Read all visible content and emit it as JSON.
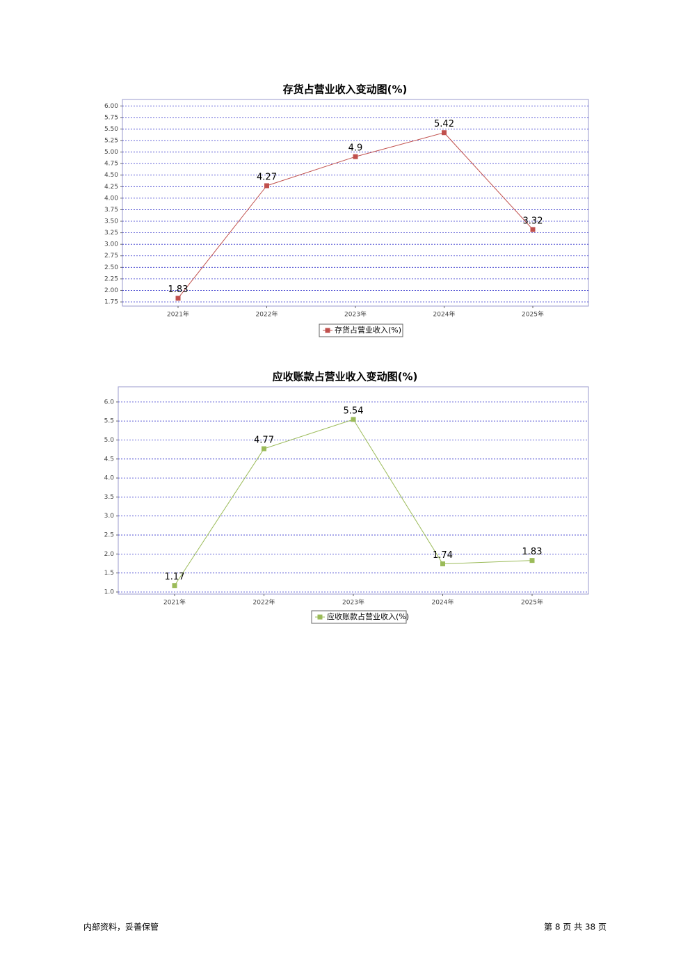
{
  "chart_data": [
    {
      "type": "line",
      "title": "存货占营业收入变动图(%)",
      "categories": [
        "2021年",
        "2022年",
        "2023年",
        "2024年",
        "2025年"
      ],
      "series": [
        {
          "name": "存货占营业收入(%)",
          "color": "#c0504d",
          "values": [
            1.83,
            4.27,
            4.9,
            5.42,
            3.32
          ]
        }
      ],
      "ylim": [
        1.66,
        6.14
      ],
      "yticks": [
        1.75,
        {
          "value": 2,
          "label": "2.00"
        },
        2.25,
        {
          "value": 2.5,
          "label": "2.50"
        },
        2.75,
        {
          "value": 3,
          "label": "3.00"
        },
        3.25,
        {
          "value": 3.5,
          "label": "3.50"
        },
        3.75,
        {
          "value": 4,
          "label": "4.00"
        },
        4.25,
        {
          "value": 4.5,
          "label": "4.50"
        },
        4.75,
        {
          "value": 5,
          "label": "5.00"
        },
        5.25,
        {
          "value": 5.5,
          "label": "5.50"
        },
        5.75,
        {
          "value": 6,
          "label": "6.00"
        }
      ],
      "grid": true,
      "legend": "bottom"
    },
    {
      "type": "line",
      "title": "应收账款占营业收入变动图(%)",
      "categories": [
        "2021年",
        "2022年",
        "2023年",
        "2024年",
        "2025年"
      ],
      "series": [
        {
          "name": "应收账款占营业收入(%)",
          "color": "#9bbb59",
          "values": [
            1.17,
            4.77,
            5.54,
            1.74,
            1.83
          ]
        }
      ],
      "ylim": [
        0.945,
        6.4
      ],
      "yticks": [
        {
          "value": 1,
          "label": "1.0"
        },
        1.5,
        {
          "value": 2,
          "label": "2.0"
        },
        2.5,
        {
          "value": 3,
          "label": "3.0"
        },
        3.5,
        {
          "value": 4,
          "label": "4.0"
        },
        4.5,
        {
          "value": 5,
          "label": "5.0"
        },
        5.5,
        {
          "value": 6,
          "label": "6.0"
        }
      ],
      "grid": true,
      "legend": "bottom"
    }
  ],
  "footer": {
    "left": "内部资料，妥善保管",
    "right": "第 8 页  共 38 页"
  }
}
